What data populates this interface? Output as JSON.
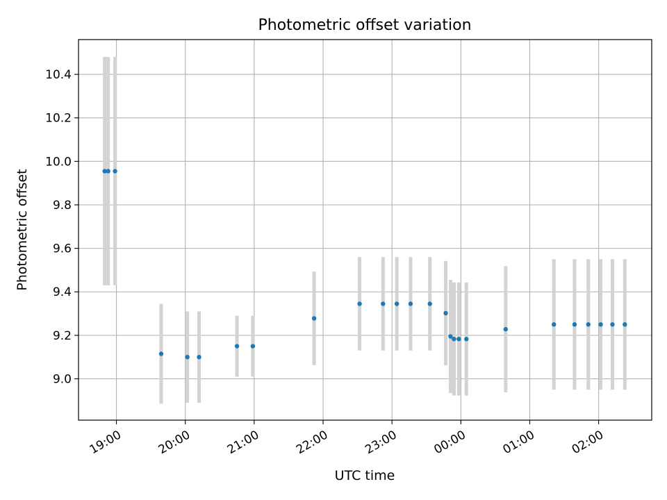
{
  "chart_data": {
    "type": "scatter",
    "title": "Photometric offset variation",
    "xlabel": "UTC time",
    "ylabel": "Photometric offset",
    "x_unit": "hours (UTC, clock times continue past midnight)",
    "xlim": [
      18.45,
      26.77
    ],
    "ylim": [
      8.81,
      10.56
    ],
    "x_ticks": [
      19,
      20,
      21,
      22,
      23,
      24,
      25,
      26
    ],
    "x_tick_labels": [
      "19:00",
      "20:00",
      "21:00",
      "22:00",
      "23:00",
      "00:00",
      "01:00",
      "02:00"
    ],
    "y_ticks": [
      9.0,
      9.2,
      9.4,
      9.6,
      9.8,
      10.0,
      10.2,
      10.4
    ],
    "y_tick_labels": [
      "9.0",
      "9.2",
      "9.4",
      "9.6",
      "9.8",
      "10.0",
      "10.2",
      "10.4"
    ],
    "grid": true,
    "marker_color": "#1f77b4",
    "errorbar_color": "#d3d3d3",
    "points": [
      {
        "x": 18.83,
        "y": 9.955,
        "err": 0.525
      },
      {
        "x": 18.88,
        "y": 9.955,
        "err": 0.525
      },
      {
        "x": 18.98,
        "y": 9.955,
        "err": 0.525
      },
      {
        "x": 19.65,
        "y": 9.115,
        "err": 0.23
      },
      {
        "x": 20.03,
        "y": 9.1,
        "err": 0.21
      },
      {
        "x": 20.2,
        "y": 9.1,
        "err": 0.21
      },
      {
        "x": 20.75,
        "y": 9.15,
        "err": 0.14
      },
      {
        "x": 20.98,
        "y": 9.15,
        "err": 0.14
      },
      {
        "x": 21.87,
        "y": 9.278,
        "err": 0.215
      },
      {
        "x": 22.53,
        "y": 9.345,
        "err": 0.215
      },
      {
        "x": 22.87,
        "y": 9.345,
        "err": 0.215
      },
      {
        "x": 23.07,
        "y": 9.345,
        "err": 0.215
      },
      {
        "x": 23.27,
        "y": 9.345,
        "err": 0.215
      },
      {
        "x": 23.55,
        "y": 9.345,
        "err": 0.215
      },
      {
        "x": 23.78,
        "y": 9.302,
        "err": 0.24
      },
      {
        "x": 23.85,
        "y": 9.195,
        "err": 0.26
      },
      {
        "x": 23.9,
        "y": 9.183,
        "err": 0.26
      },
      {
        "x": 23.97,
        "y": 9.183,
        "err": 0.26
      },
      {
        "x": 24.08,
        "y": 9.183,
        "err": 0.26
      },
      {
        "x": 24.65,
        "y": 9.228,
        "err": 0.29
      },
      {
        "x": 25.35,
        "y": 9.25,
        "err": 0.3
      },
      {
        "x": 25.65,
        "y": 9.25,
        "err": 0.3
      },
      {
        "x": 25.85,
        "y": 9.25,
        "err": 0.3
      },
      {
        "x": 26.03,
        "y": 9.25,
        "err": 0.3
      },
      {
        "x": 26.2,
        "y": 9.25,
        "err": 0.3
      },
      {
        "x": 26.38,
        "y": 9.25,
        "err": 0.3
      }
    ]
  }
}
